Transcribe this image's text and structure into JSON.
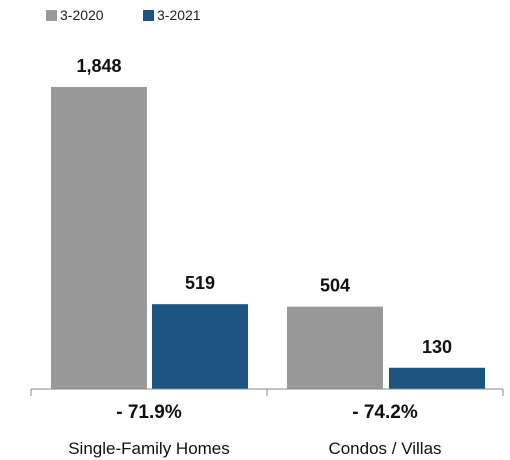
{
  "chart_data": {
    "type": "bar",
    "categories": [
      "Single-Family Homes",
      "Condos / Villas"
    ],
    "series": [
      {
        "name": "3-2020",
        "values": [
          1848,
          504
        ],
        "color": "#999999"
      },
      {
        "name": "3-2021",
        "values": [
          519,
          130
        ],
        "color": "#1b557f"
      }
    ],
    "value_labels": [
      [
        "1,848",
        "504"
      ],
      [
        "519",
        "130"
      ]
    ],
    "change_labels": [
      "- 71.9%",
      "- 74.2%"
    ],
    "legend_position": "top-left",
    "ylim": [
      0,
      1848
    ],
    "grid": false,
    "title": "",
    "xlabel": "",
    "ylabel": ""
  }
}
